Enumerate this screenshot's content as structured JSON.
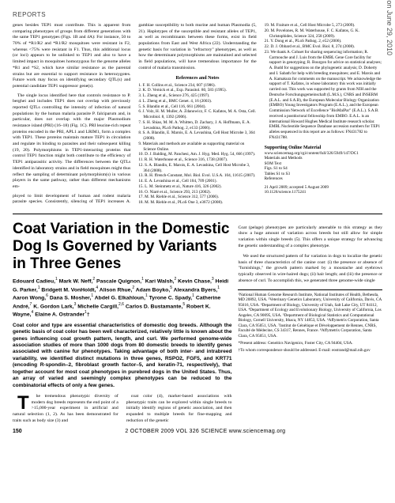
{
  "section_tag": "REPORTS",
  "sidebar": "Downloaded from www.sciencemag.org on June 29, 2010",
  "top": {
    "col1_p1": "genes besides TEP1 must contribute. This is apparent from comparing phenotypes of groups from different generations with the same TEP1 genotypes (Figs. 1B and 4A): For instance, 50 to 70% of *R1/R2 and *R1/R2 mosquitoes were resistant in F2, whereas <75% were resistant in F1. Thus, this additional locus (or loci) appears to be unlinked to TEP1 and also to have a limited impact in mosquitoes homozygous for the genome alleles *R1 and *S2, which have similar resistance as the parental strains but are essential to support resistance in heterozygotes. Future work may focus on identifying secondary QTL(s) and potential candidate TEP1 suppressor gene(s).",
    "col1_p2": "The single locus identified here that controls resistance to P. berghei and includes TEP1 does not overlap with previously reported QTLs controlling the intensity of infection of natural populations by the human malaria parasite P. falciparum and, in particular, does not overlap with the major Plasmodium resistance island (PRI) (16–18) (Fig. 1C). PRI leucine-rich repeat proteins encoded in the PRI, APL1 and LRIM1, form a complex with TEP1. These proteins maintain mature TEP1 in circulation and regulate its binding to parasites and their subsequent killing (19, 20). Polymorphisms in TEP1-interacting proteins that control TEP1 function might both contribute to the efficiency of TEP1 antiparasitic activity. The differences between the QTLs identified in laboratory strains and in field mosquitoes might thus reflect the sampling of determinant polymorphism(s) in various players in the same pathway, rather than different mechanisms em-",
    "col2_p1": "ployed to limit development of human and rodent malaria parasite species. Consistently, silencing of TEP1 increases A. gambiae susceptibility to both murine and human Plasmodia (5, 21). Haplotypes of the susceptible and resistant alleles of TEP1, as well as recombinants between these forms, exist in field populations from East and West Africa (22). Understanding the genetic basis for variation in \"refractory\" phenotypes, as well as how the determinant polymorphisms are maintained and selected in field populations, will have tremendous importance for the control of malaria transmission.",
    "refs_head": "References and Notes",
    "refs": [
      "1. F. H. Collins et al., Science 234, 607 (1986).",
      "2. K. D. Vernick et al., Exp. Parasitol. 80, 583 (1995).",
      "3. L. Zheng et al., Science 276, 425 (1997).",
      "4. L. Zheng et al., BMC Genet. 4, 16 (2003).",
      "5. S. Blandin et al., Cell 116, 661 (2004).",
      "6. J. Volz, H. M. Muller, A. Zdanowicz, F. C. Kafatos, M. A. Osta, Cell. Microbiol. 8, 1392 (2006).",
      "7. S. H. Shiao, M. M. A. Whitten, D. Zachary, J. A. Hoffmann, E. A. Levashina, PLoS Pathog. 2, e133 (2006).",
      "8. S. A. Blandin, E. Marois, E. A. Levashina, Cell Host Microbe 3, 364 (2008).",
      "9. Materials and methods are available as supporting material on Science Online.",
      "10. D. J. Balding, M. Panchesi, Am. J. Hyg. Med. Hyg. 54, 666 (1997).",
      "11. R. H. Waterhouse et al., Science 316, 1738 (2007).",
      "12. S. A. Blandin, E. Marois, E. A. Levashina, Cell Host Microbe 3, 364 (2008).",
      "13. R. H. ffrench-Constant, Mol. Biol. Evol. U.S.A. 104, 11615 (2007).",
      "14. E. A. Levashina et al., Cell 104, 709 (2001).",
      "15. L. M. Steinmetz et al., Nature 416, 326 (2002).",
      "16. O. Niaré et al., Science 293, 213 (2002).",
      "17. M. M. Riehle et al., Science 312, 577 (2006).",
      "18. M. M. Riehle et al., PLoS One 3, e3672 (2008).",
      "19. M. Fraiture et al., Cell Host Microbe 5, 273 (2009).",
      "20. M. Povelones, R. M. Waterhouse, F. C. Kafatos, G. K. Christophides, Science 324, 258 (2009).",
      "21. Y. Dong et al., PLoS Pathog. 2, e52 (2006).",
      "22. D. J. Obbard et al., BMC Evol. Biol. 8, 274 (2008).",
      "23. We thank A. Cohuet for sharing sequencing information; R. Carmouche and J. Luis from the EMBL Gene Core facility for support in genotyping; R. Bourgon for advice on statistical analyses; A. Budd for suggestions on the phylogenetic analysis; D. Doherty and I. Sabath for help with breeding mosquitoes; and E. Marois and A. Kamakura for comments on the manuscript. We acknowledge the support of T. Kafatos, in whose laboratory this work was initially carried out. This work was supported by grants from NIH and the Deutsche Forschungsgemeinschaft (L.M.S.), CNRS and INSERM (E.A.L. and S.A.B), the European Molecular Biology Organization (EMBO) Young Investigators Program (E.A.L.), and the European Commission Network of Excellence \"BioMalPar\" (E.A.L.). S.A.B. received a postdoctoral fellowship from EMBO. E.A.L. is an international Howard Hughes Medical Institute research scholar. EMBL Nucleotide Sequence Database accession numbers for TEP1 alleles sequenced in this report are as follows: FN431782 to FN431788."
    ],
    "supp_head": "Supporting Online Material",
    "supp_body": "www.sciencemag.org/cgi/content/full/326/5949/147/DC1\nMaterials and Methods\nSOM Text\nFigs. S1 to S4\nTables S1 to S3\nReferences",
    "supp_dates": "21 April 2009; accepted 5 August 2009\n10.1126/science.1175241"
  },
  "article": {
    "title": "Coat Variation in the Domestic Dog Is Governed by Variants in Three Genes",
    "authors_html": "Edouard Cadieu,<sup>1</sup> Mark W. Neff,<sup>2</sup> Pascale Quignon,<sup>1</sup> Kari Walsh,<sup>2</sup> Kevin Chase,<sup>3</sup> Heidi G. Parker,<sup>1</sup> Bridgett M. VonHoldt,<sup>4</sup> Alison Rhue,<sup>2</sup> Adam Boyko,<sup>5</sup> Alexandra Byers,<sup>1</sup> Aaron Wong,<sup>6</sup> Dana S. Mosher,<sup>1</sup> Abdel G. Elkahloun,<sup>1</sup> Tyrone C. Spady,<sup>1</sup> Catherine André,<sup>7</sup> K. Gordon Lark,<sup>3</sup> Michelle Cargill,<sup>2,6</sup> Carlos D. Bustamante,<sup>5</sup> Robert K. Wayne,<sup>4</sup> Elaine A. Ostrander<sup>1</sup>†",
    "abstract": "Coat color and type are essential characteristics of domestic dog breeds. Although the genetic basis of coat color has been well characterized, relatively little is known about the genes influencing coat growth pattern, length, and curl. We performed genome-wide association studies of more than 1000 dogs from 80 domestic breeds to identify genes associated with canine fur phenotypes. Taking advantage of both inter- and intrabreed variability, we identified distinct mutations in three genes, RSPO2, FGF5, and KRT71 (encoding R-spondin–2, fibroblast growth factor–5, and keratin-71, respectively), that together account for most coat phenotypes in purebred dogs in the United States. Thus, an array of varied and seemingly complex phenotypes can be reduced to the combinatorial effects of only a few genes.",
    "body_p1": "he tremendous phenotypic diversity of modern dog breeds represents the end point of a >15,000-year experiment in artificial and natural selection (1, 2). As has been demonstrated for traits such as body size (3) and",
    "body_p2": "coat color (4), marker-based associations with phenotypic traits can be explored within single breeds to initially identify regions of genetic association, and then expanded to multiple breeds for fine-mapping and reduction of the genetic",
    "body_p3": "Coat (pelage) phenotypes are particularly amenable to this strategy as they show a huge amount of variation across breeds but still allow for simple variation within single breeds (5). This offers a unique strategy for advancing the genetic understanding of a complex phenotype.",
    "body_p4": "We used the structured pattern of fur variation in dogs to localize the genetic basis of three characteristics of the canine coat: (i) the presence or absence of \"furnishings,\" the growth pattern marked by a moustache and eyebrows typically observed in wire-haired dogs; (ii) hair length; and (iii) the presence or absence of curl. To accomplish this, we generated three genome-wide single",
    "affiliations": "¹National Human Genome Research Institute, National Institutes of Health, Bethesda, MD 20892, USA. ²Veterinary Genetics Laboratory, University of California, Davis, CA 95616, USA. ³Department of Biology, University of Utah, Salt Lake City, UT 84112, USA. ⁴Department of Ecology and Evolutionary Biology, University of California, Los Angeles, CA 90095, USA. ⁵Department of Biological Statistics and Computational Biology, Cornell University, Ithaca, NY 14853, USA. ⁶Affymetrix Corporation, Santa Clara, CA 95051, USA. ⁷Institut de Génétique et Développement de Rennes, CNRS, Faculté de Médecine, CS 34317, Rennes, France. ⁸Affymetrix Corporation, Santa Clara, CA 95051, USA.",
    "present": "*Present address: Geneitics Navigenics, Foster City, CA 94404, USA.",
    "corresponding": "†To whom correspondence should be addressed. E-mail: eostrand@mail.nih.gov"
  },
  "footer": {
    "page": "150",
    "meta": "2 OCTOBER 2009   VOL 326   SCIENCE   www.sciencemag.org"
  },
  "colors": {
    "text": "#000000",
    "bg": "#ffffff",
    "side": "#555555"
  }
}
